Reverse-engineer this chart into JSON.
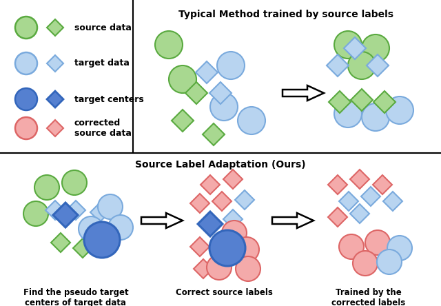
{
  "title_top": "Typical Method trained by source labels",
  "title_bottom": "Source Label Adaptation (Ours)",
  "label1": "source data",
  "label2": "target data",
  "label3": "target centers",
  "label4": "corrected\nsource data",
  "caption1": "Find the pseudo target\ncenters of target data",
  "caption2": "Correct source labels",
  "caption3": "Trained by the\ncorrected labels",
  "green_fill": "#a8d890",
  "green_edge": "#5aaa40",
  "blue_light_fill": "#b8d4f0",
  "blue_light_edge": "#7aaadd",
  "blue_dark_fill": "#5580d0",
  "blue_dark_edge": "#3366bb",
  "red_fill": "#f4aaaa",
  "red_edge": "#dd6666",
  "bg_color": "#ffffff"
}
